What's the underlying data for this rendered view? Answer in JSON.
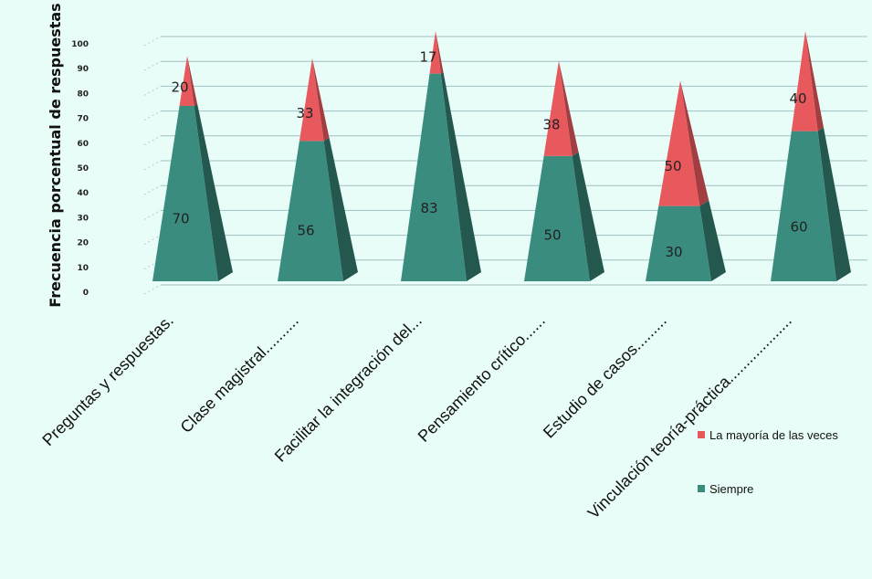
{
  "chart_data": {
    "type": "bar",
    "style": "3d-pyramid-stacked",
    "ylabel": "Frecuencia porcentual de respuestas",
    "ylim": [
      0,
      100
    ],
    "yticks": [
      0,
      10,
      20,
      30,
      40,
      50,
      60,
      70,
      80,
      90,
      100
    ],
    "categories": [
      "Preguntas y respuestas.",
      "Clase magistral..........",
      "Facilitar la integración del...",
      "Pensamiento crítico......",
      "Estudio de casos.........",
      "Vinculación teoría-práctica..................."
    ],
    "series": [
      {
        "name": "Siempre",
        "values": [
          70,
          56,
          83,
          50,
          30,
          60
        ],
        "color": "#3a8c7e"
      },
      {
        "name": "La mayoría de las veces",
        "values": [
          20,
          33,
          17,
          38,
          50,
          40
        ],
        "color": "#e8595e"
      }
    ],
    "grid": true,
    "legend_position": "right"
  }
}
